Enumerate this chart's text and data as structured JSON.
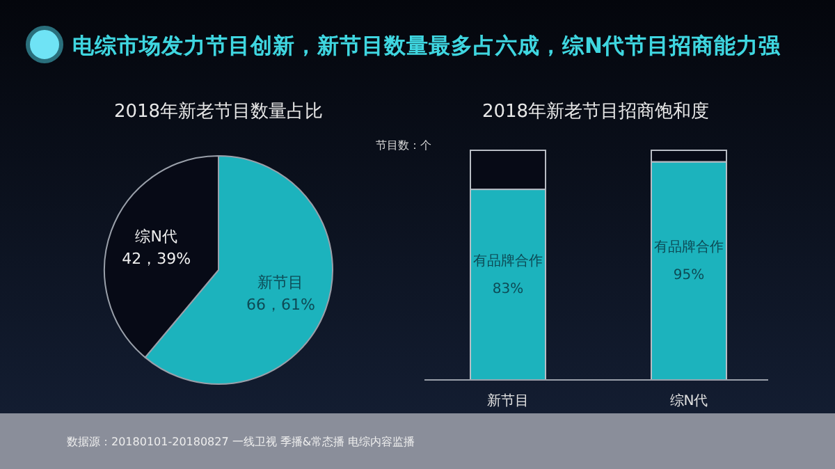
{
  "chart_data": [
    {
      "type": "pie",
      "title": "电综市场发力节目创新，新节目数量最多占六成，综N代节目招商能力强",
      "subtitle": "2018年新老节目数量占比",
      "categories": [
        "新节目",
        "综N代"
      ],
      "values": [
        66,
        42
      ],
      "colors": [
        "#1cb3bd",
        "#070a16"
      ],
      "value_labels": [
        "66，61%",
        "42，39%"
      ]
    },
    {
      "type": "bar",
      "stacked": true,
      "title": "2018年新老节目招商饱和度",
      "ylabel": "节目数：个",
      "categories": [
        "新节目",
        "综N代"
      ],
      "series": [
        {
          "name": "有品牌合作",
          "color": "#1cb3bd",
          "values": [
            83,
            95
          ],
          "value_labels": [
            "83%",
            "95%"
          ]
        },
        {
          "color": "#070a16",
          "values": [
            17,
            5
          ]
        }
      ],
      "annotations": [
        "数据源：20180101-20180827 一线卫视 季播&常态播 电综内容监播"
      ]
    }
  ]
}
